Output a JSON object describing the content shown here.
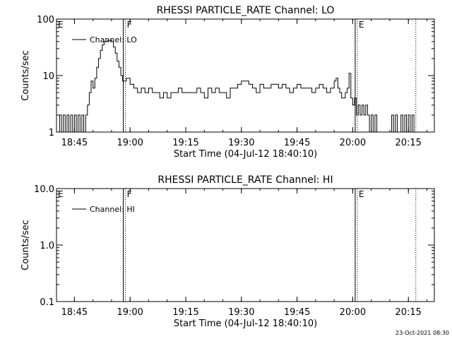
{
  "footer": {
    "timestamp": "23-Oct-2021 08:30"
  },
  "chart_data": [
    {
      "type": "line",
      "title": "RHESSI PARTICLE_RATE Channel: LO",
      "xlabel": "Start Time (04-Jul-12 18:40:10)",
      "ylabel": "Counts/sec",
      "yscale": "log",
      "ylim": [
        1,
        100
      ],
      "xlim": [
        "18:40:10",
        "20:22:00"
      ],
      "x_ticks": [
        "18:45",
        "19:00",
        "19:15",
        "19:30",
        "19:45",
        "20:00",
        "20:15"
      ],
      "y_ticks": [
        "1",
        "10",
        "100"
      ],
      "legend": {
        "entries": [
          "Channel: LO"
        ],
        "placement": "top-left"
      },
      "grid": false,
      "markers": [
        {
          "label": "E",
          "time": "18:40:10",
          "style": "solid"
        },
        {
          "label": "F",
          "time": "18:58:10",
          "style": "solid+dotted"
        },
        {
          "label": "E",
          "time": "20:00:40",
          "style": "solid+dotted"
        },
        {
          "label": "",
          "time": "20:17:00",
          "style": "dotted"
        }
      ],
      "series": [
        {
          "name": "Channel: LO",
          "x": [
            "18:40:10",
            "18:41:00",
            "18:41:30",
            "18:42:00",
            "18:42:30",
            "18:43:00",
            "18:43:30",
            "18:44:00",
            "18:44:30",
            "18:45:00",
            "18:45:30",
            "18:46:00",
            "18:46:30",
            "18:47:00",
            "18:47:30",
            "18:48:00",
            "18:48:30",
            "18:49:00",
            "18:49:30",
            "18:50:00",
            "18:50:30",
            "18:51:00",
            "18:51:30",
            "18:52:00",
            "18:52:30",
            "18:53:00",
            "18:54:00",
            "18:55:00",
            "18:55:30",
            "18:56:00",
            "18:56:30",
            "18:57:00",
            "18:57:30",
            "18:58:00",
            "18:59:00",
            "19:00:00",
            "19:01:00",
            "19:02:00",
            "19:03:00",
            "19:04:00",
            "19:05:00",
            "19:06:00",
            "19:07:00",
            "19:08:00",
            "19:09:00",
            "19:10:00",
            "19:11:00",
            "19:12:00",
            "19:13:00",
            "19:14:00",
            "19:15:00",
            "19:16:00",
            "19:17:00",
            "19:18:00",
            "19:19:00",
            "19:20:00",
            "19:21:00",
            "19:22:00",
            "19:23:00",
            "19:24:00",
            "19:25:00",
            "19:26:00",
            "19:27:00",
            "19:28:00",
            "19:29:00",
            "19:30:00",
            "19:31:00",
            "19:32:00",
            "19:33:00",
            "19:34:00",
            "19:35:00",
            "19:36:00",
            "19:37:00",
            "19:38:00",
            "19:39:00",
            "19:40:00",
            "19:41:00",
            "19:42:00",
            "19:43:00",
            "19:44:00",
            "19:45:00",
            "19:46:00",
            "19:47:00",
            "19:48:00",
            "19:49:00",
            "19:50:00",
            "19:51:00",
            "19:52:00",
            "19:53:00",
            "19:54:00",
            "19:55:00",
            "19:55:30",
            "19:56:00",
            "19:56:30",
            "19:57:00",
            "19:57:30",
            "19:58:00",
            "19:58:30",
            "19:59:00",
            "19:59:30",
            "20:00:00",
            "20:00:30",
            "20:01:00",
            "20:01:30",
            "20:02:00",
            "20:02:30",
            "20:03:00",
            "20:03:30",
            "20:04:00",
            "20:04:30",
            "20:05:00",
            "20:05:30",
            "20:06:00",
            "20:06:30",
            "20:07:00",
            "20:08:00",
            "20:09:00",
            "20:10:00",
            "20:10:30",
            "20:11:00",
            "20:11:30",
            "20:12:00",
            "20:12:30",
            "20:13:00",
            "20:13:30",
            "20:14:00",
            "20:14:30",
            "20:15:00",
            "20:15:30",
            "20:16:00",
            "20:16:30",
            "20:17:00"
          ],
          "values": [
            1,
            2,
            1,
            2,
            1,
            2,
            1,
            2,
            1,
            2,
            1,
            2,
            1,
            2,
            1,
            2,
            3,
            5,
            8,
            6,
            9,
            14,
            20,
            28,
            35,
            40,
            42,
            40,
            32,
            25,
            18,
            14,
            10,
            8,
            9,
            7,
            6,
            5,
            6,
            5,
            6,
            5,
            5,
            4,
            5,
            4,
            5,
            5,
            6,
            5,
            5,
            5,
            5,
            6,
            5,
            4,
            6,
            5,
            6,
            5,
            5,
            4,
            6,
            6,
            7,
            8,
            8,
            7,
            6,
            5,
            7,
            6,
            6,
            7,
            7,
            6,
            7,
            6,
            5,
            6,
            7,
            6,
            6,
            6,
            5,
            6,
            7,
            6,
            5,
            6,
            8,
            9,
            6,
            5,
            4,
            4,
            5,
            6,
            11,
            4,
            3,
            4,
            2,
            3,
            2,
            3,
            2,
            3,
            2,
            1,
            2,
            1,
            2,
            1,
            1,
            1,
            1,
            1,
            2,
            1,
            2,
            1,
            1,
            2,
            1,
            2,
            1,
            2,
            1,
            2,
            1,
            1
          ]
        }
      ]
    },
    {
      "type": "line",
      "title": "RHESSI PARTICLE_RATE Channel: HI",
      "xlabel": "Start Time (04-Jul-12 18:40:10)",
      "ylabel": "Counts/sec",
      "yscale": "log",
      "ylim": [
        0.1,
        10
      ],
      "xlim": [
        "18:40:10",
        "20:22:00"
      ],
      "x_ticks": [
        "18:45",
        "19:00",
        "19:15",
        "19:30",
        "19:45",
        "20:00",
        "20:15"
      ],
      "y_ticks": [
        "0.1",
        "1.0",
        "10.0"
      ],
      "legend": {
        "entries": [
          "Channel: HI"
        ],
        "placement": "top-left"
      },
      "grid": false,
      "markers": [
        {
          "label": "E",
          "time": "18:40:10",
          "style": "solid"
        },
        {
          "label": "F",
          "time": "18:58:10",
          "style": "solid+dotted"
        },
        {
          "label": "E",
          "time": "20:00:40",
          "style": "solid+dotted"
        },
        {
          "label": "",
          "time": "20:17:00",
          "style": "dotted"
        }
      ],
      "series": [
        {
          "name": "Channel: HI",
          "x": [],
          "values": []
        }
      ]
    }
  ]
}
